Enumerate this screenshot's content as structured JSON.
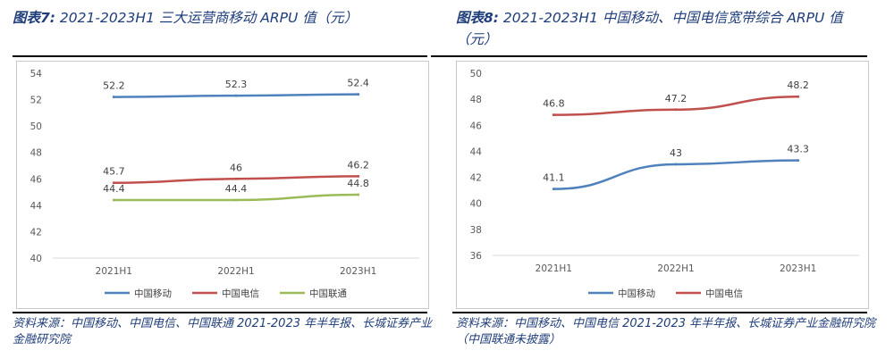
{
  "left_panel": {
    "caption_label": "图表7:",
    "caption_title": "2021-2023H1 三大运营商移动 ARPU 值（元）",
    "source_note": "资料来源：中国移动、中国电信、中国联通 2021-2023 年半年报、长城证券产业金融研究院"
  },
  "right_panel": {
    "caption_label": "图表8:",
    "caption_title": "2021-2023H1 中国移动、中国电信宽带综合 ARPU 值（元）",
    "source_note": "资料来源：中国移动、中国电信 2021-2023 年半年报、长城证券产业金融研究院（中国联通未披露）"
  },
  "chart_data": [
    {
      "type": "line",
      "categories": [
        "2021H1",
        "2022H1",
        "2023H1"
      ],
      "ylim": [
        40,
        54
      ],
      "yticks": [
        40,
        42,
        44,
        46,
        48,
        50,
        52,
        54
      ],
      "grid": false,
      "legend_position": "bottom",
      "series": [
        {
          "name": "中国移动",
          "values": [
            52.2,
            52.3,
            52.4
          ],
          "color": "#4f81bd",
          "labels": [
            "52.2",
            "52.3",
            "52.4"
          ]
        },
        {
          "name": "中国电信",
          "values": [
            45.7,
            46,
            46.2
          ],
          "color": "#c0504d",
          "labels": [
            "45.7",
            "46",
            "46.2"
          ]
        },
        {
          "name": "中国联通",
          "values": [
            44.4,
            44.4,
            44.8
          ],
          "color": "#9bbb59",
          "labels": [
            "44.4",
            "44.4",
            "44.8"
          ]
        }
      ]
    },
    {
      "type": "line",
      "categories": [
        "2021H1",
        "2022H1",
        "2023H1"
      ],
      "ylim": [
        36,
        50
      ],
      "yticks": [
        36,
        38,
        40,
        42,
        44,
        46,
        48,
        50
      ],
      "grid": false,
      "legend_position": "bottom",
      "series": [
        {
          "name": "中国移动",
          "values": [
            41.1,
            43,
            43.3
          ],
          "color": "#4f81bd",
          "labels": [
            "41.1",
            "43",
            "43.3"
          ]
        },
        {
          "name": "中国电信",
          "values": [
            46.8,
            47.2,
            48.2
          ],
          "color": "#c0504d",
          "labels": [
            "46.8",
            "47.2",
            "48.2"
          ]
        }
      ]
    }
  ]
}
